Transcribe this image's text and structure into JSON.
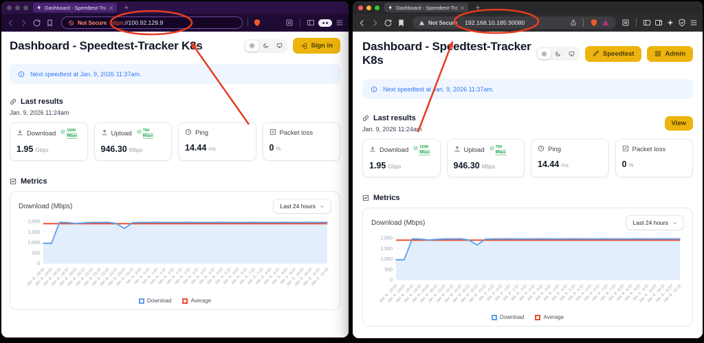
{
  "annotation": {
    "color": "#e73b22",
    "shapes": [
      "ellipse-around-left-url",
      "arrow-to-left-url",
      "ellipse-around-right-url",
      "arrow-to-right-url"
    ]
  },
  "chart_data": {
    "type": "line",
    "title": "Download (Mbps)",
    "range_selector": "Last 24 hours",
    "ylim": [
      0,
      2000
    ],
    "yticks": [
      2000,
      1500,
      1000,
      500,
      0
    ],
    "ytick_labels": [
      "2,000",
      "1,500",
      "1,000",
      "500",
      "0"
    ],
    "grid": true,
    "legend_position": "bottom",
    "x": [
      "Jan. 8 - 19:00",
      "Jan. 8 - 19:07",
      "Jan. 8 - 19:22",
      "Jan. 8 - 19:37",
      "Jan. 8 - 20:07",
      "Jan. 8 - 20:37",
      "Jan. 8 - 21:07",
      "Jan. 8 - 21:37",
      "Jan. 8 - 22:07",
      "Jan. 8 - 22:37",
      "Jan. 8 - 23:07",
      "Jan. 8 - 23:37",
      "Jan. 9 - 0:07",
      "Jan. 9 - 0:37",
      "Jan. 9 - 1:07",
      "Jan. 9 - 1:37",
      "Jan. 9 - 2:07",
      "Jan. 9 - 2:37",
      "Jan. 9 - 3:07",
      "Jan. 9 - 3:37",
      "Jan. 9 - 4:07",
      "Jan. 9 - 4:37",
      "Jan. 9 - 5:07",
      "Jan. 9 - 5:37",
      "Jan. 9 - 6:07",
      "Jan. 9 - 6:37",
      "Jan. 9 - 7:07",
      "Jan. 9 - 7:37",
      "Jan. 9 - 8:07",
      "Jan. 9 - 8:37",
      "Jan. 9 - 9:07",
      "Jan. 9 - 9:37",
      "Jan. 9 - 10:07",
      "Jan. 9 - 10:37",
      "Jan. 9 - 11:07",
      "Jan. 9 - 11:24"
    ],
    "series": [
      {
        "name": "Download",
        "color": "#58a0ee",
        "fill": "#e2eefb",
        "values": [
          950,
          945,
          1950,
          1938,
          1898,
          1924,
          1948,
          1944,
          1950,
          1895,
          1655,
          1935,
          1948,
          1944,
          1950,
          1946,
          1948,
          1943,
          1950,
          1946,
          1948,
          1944,
          1950,
          1945,
          1948,
          1946,
          1950,
          1944,
          1948,
          1946,
          1950,
          1945,
          1948,
          1950,
          1946,
          1952
        ]
      },
      {
        "name": "Average",
        "color": "#e84c30",
        "value": 1890
      }
    ]
  },
  "page": {
    "heading": "Dashboard - Speedtest-Tracker K8s",
    "banner_text": "Next speedtest at Jan. 9, 2026 11:37am.",
    "theme_toggle_icons": [
      "sun-icon",
      "moon-icon",
      "monitor-icon"
    ],
    "last_results_title": "Last results",
    "last_results_timestamp": "Jan. 9, 2026 11:24am",
    "result_cards": [
      {
        "icon": "download-icon",
        "label": "Download",
        "badge_value": "1500",
        "badge_unit": "Mbps",
        "value": "1.95",
        "unit": "Gbps"
      },
      {
        "icon": "upload-icon",
        "label": "Upload",
        "badge_value": "750",
        "badge_unit": "Mbps",
        "value": "946.30",
        "unit": "Mbps"
      },
      {
        "icon": "clock-icon",
        "label": "Ping",
        "badge_value": "",
        "badge_unit": "",
        "value": "14.44",
        "unit": "ms"
      },
      {
        "icon": "percent-icon",
        "label": "Packet loss",
        "badge_value": "",
        "badge_unit": "",
        "value": "0",
        "unit": "%"
      }
    ],
    "metrics_title": "Metrics",
    "legend": [
      {
        "label": "Download",
        "color": "#58a0ee"
      },
      {
        "label": "Average",
        "color": "#e84c30"
      }
    ]
  },
  "left_window": {
    "tab_title": "Dashboard - Speedtest-Track",
    "security_label": "Not Secure",
    "url_scheme": "https",
    "url_rest": "://100.92.129.9",
    "header_buttons": [
      {
        "label": "Sign in",
        "icon": "login-icon"
      }
    ],
    "toolbar_icons": [
      "back-icon",
      "forward-icon",
      "reload-icon",
      "bookmark-icon",
      "blocked-icon",
      "brave-shield-icon",
      "screenshot-icon",
      "sidebar-icon",
      "profile-pill-icon",
      "menu-icon"
    ]
  },
  "right_window": {
    "tab_title": "Dashboard - Speedtest-Track",
    "security_label": "Not Secure",
    "url": "192.168.10.185:30080",
    "header_buttons": [
      {
        "label": "Speedtest",
        "icon": "pencil-icon"
      },
      {
        "label": "Admin",
        "icon": "grid-icon"
      }
    ],
    "view_button_label": "View",
    "toolbar_icons": [
      "back-icon",
      "forward-icon",
      "reload-icon",
      "bookmark-icon",
      "warning-icon",
      "share-icon",
      "brave-shield-icon",
      "extension-triangle-icon",
      "screenshot-icon",
      "sidebar-icon",
      "panel-icon",
      "sparkle-icon",
      "shield-check-icon",
      "menu-icon"
    ]
  }
}
